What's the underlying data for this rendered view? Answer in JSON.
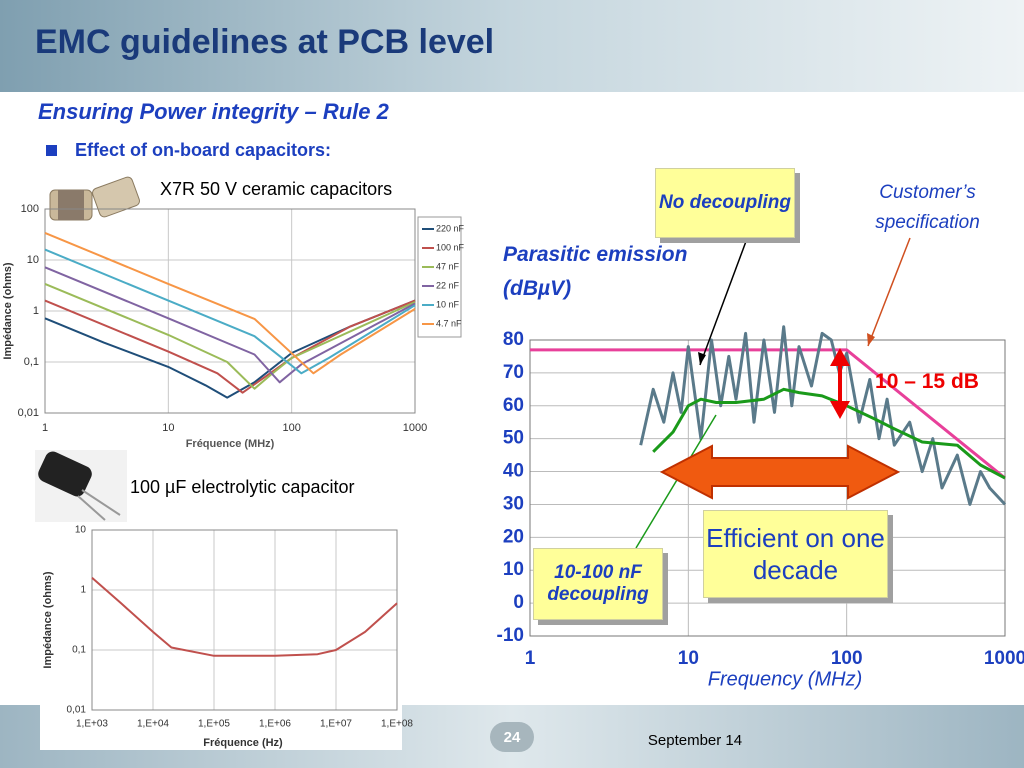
{
  "header": {
    "title": "EMC guidelines at PCB level",
    "subtitle": "Ensuring Power integrity – Rule 2",
    "bullet": "Effect of on-board capacitors:"
  },
  "footer": {
    "page": "24",
    "date": "September 14"
  },
  "chart_data": [
    {
      "type": "line",
      "title": "X7R 50 V ceramic capacitors",
      "xlabel": "Fréquence (MHz)",
      "ylabel": "Impédance (ohms)",
      "xlog": true,
      "ylog": true,
      "grid": true,
      "legend": "upper right",
      "xlim": [
        1,
        1000
      ],
      "xticks": [
        1,
        10,
        100,
        1000
      ],
      "ylim": [
        0.01,
        100
      ],
      "yticks": [
        {
          "value": 0.01,
          "label": "0,01"
        },
        {
          "value": 0.1,
          "label": "0,1"
        },
        1,
        10,
        100
      ],
      "series": [
        {
          "name": "220 nF",
          "color": "#1f4e79",
          "x": [
            1,
            3,
            10,
            20,
            30,
            50,
            100,
            300,
            1000
          ],
          "values": [
            0.72,
            0.24,
            0.08,
            0.035,
            0.02,
            0.04,
            0.15,
            0.5,
            1.6
          ]
        },
        {
          "name": "100 nF",
          "color": "#c0504d",
          "x": [
            1,
            10,
            25,
            40,
            60,
            100,
            300,
            1000
          ],
          "values": [
            1.6,
            0.16,
            0.06,
            0.025,
            0.05,
            0.12,
            0.5,
            1.6
          ]
        },
        {
          "name": "47 nF",
          "color": "#9bbb59",
          "x": [
            1,
            10,
            30,
            50,
            70,
            100,
            1000
          ],
          "values": [
            3.4,
            0.34,
            0.1,
            0.03,
            0.06,
            0.12,
            1.5
          ]
        },
        {
          "name": "22 nF",
          "color": "#8064a2",
          "x": [
            1,
            10,
            50,
            80,
            120,
            1000
          ],
          "values": [
            7.2,
            0.72,
            0.14,
            0.04,
            0.09,
            1.4
          ]
        },
        {
          "name": "10 nF",
          "color": "#4bacc6",
          "x": [
            1,
            10,
            50,
            120,
            200,
            1000
          ],
          "values": [
            16,
            1.6,
            0.32,
            0.06,
            0.12,
            1.3
          ]
        },
        {
          "name": "4.7 nF",
          "color": "#f79646",
          "x": [
            1,
            10,
            50,
            150,
            250,
            1000
          ],
          "values": [
            34,
            3.4,
            0.7,
            0.06,
            0.14,
            1.1
          ]
        }
      ]
    },
    {
      "type": "line",
      "title": "100 µF electrolytic capacitor",
      "xlabel": "Fréquence (Hz)",
      "ylabel": "Impédance (ohms)",
      "xlog": true,
      "ylog": true,
      "grid": true,
      "xlim": [
        1000,
        100000000
      ],
      "xticks": [
        {
          "value": 1000,
          "label": "1,E+03"
        },
        {
          "value": 10000,
          "label": "1,E+04"
        },
        {
          "value": 100000,
          "label": "1,E+05"
        },
        {
          "value": 1000000,
          "label": "1,E+06"
        },
        {
          "value": 10000000,
          "label": "1,E+07"
        },
        {
          "value": 100000000,
          "label": "1,E+08"
        }
      ],
      "ylim": [
        0.01,
        10
      ],
      "yticks": [
        {
          "value": 0.01,
          "label": "0,01"
        },
        {
          "value": 0.1,
          "label": "0,1"
        },
        1,
        10
      ],
      "series": [
        {
          "color": "#c0504d",
          "x": [
            1000,
            3000,
            10000,
            20000,
            100000,
            1000000,
            5000000,
            10000000,
            30000000,
            100000000
          ],
          "values": [
            1.6,
            0.6,
            0.2,
            0.11,
            0.08,
            0.08,
            0.085,
            0.1,
            0.2,
            0.6
          ]
        }
      ]
    },
    {
      "type": "line",
      "ylabel": "Parasitic emission (dBµV)",
      "xlabel": "Frequency (MHz)",
      "xlog": true,
      "ylog": false,
      "grid": true,
      "xlim": [
        1,
        1000
      ],
      "xticks": [
        1,
        10,
        100,
        1000
      ],
      "ylim": [
        -10,
        80
      ],
      "yticks": [
        -10,
        0,
        10,
        20,
        30,
        40,
        50,
        60,
        70,
        80
      ],
      "annotations": [
        "10 – 15 dB",
        "Efficient on one decade"
      ],
      "series": [
        {
          "name": "Customer’s specification",
          "color": "#e8409a",
          "x": [
            1,
            100,
            1000
          ],
          "values": [
            77,
            77,
            38
          ]
        },
        {
          "name": "No decoupling",
          "color": "#5a7a8a",
          "x": [
            5,
            6,
            7,
            8,
            9,
            10,
            12,
            14,
            16,
            18,
            20,
            23,
            26,
            30,
            35,
            40,
            45,
            50,
            60,
            70,
            80,
            90,
            100,
            120,
            140,
            160,
            180,
            200,
            250,
            300,
            350,
            400,
            500,
            600,
            700,
            800,
            1000
          ],
          "values": [
            48,
            65,
            55,
            70,
            58,
            78,
            50,
            80,
            60,
            75,
            62,
            82,
            55,
            80,
            58,
            84,
            60,
            78,
            66,
            82,
            80,
            70,
            76,
            55,
            68,
            50,
            62,
            48,
            55,
            40,
            50,
            35,
            45,
            30,
            40,
            35,
            30
          ]
        },
        {
          "name": "10-100 nF decoupling",
          "color": "#1a9a1a",
          "x": [
            6,
            8,
            10,
            12,
            15,
            20,
            30,
            40,
            50,
            70,
            100,
            150,
            200,
            300,
            500,
            700,
            1000
          ],
          "values": [
            46,
            52,
            60,
            62,
            61,
            61,
            62,
            65,
            64,
            63,
            60,
            56,
            53,
            49,
            48,
            42,
            38
          ]
        }
      ]
    }
  ]
}
